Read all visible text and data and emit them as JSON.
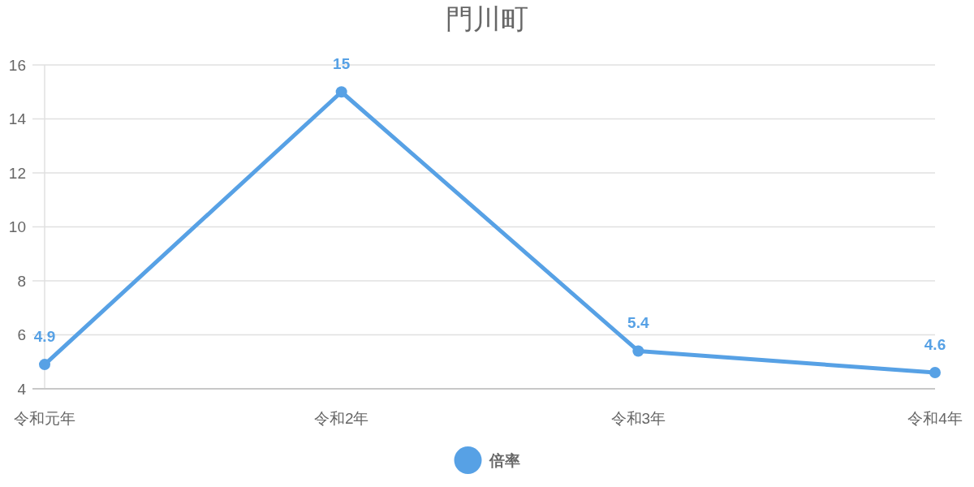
{
  "chart_data": {
    "type": "line",
    "title": "門川町",
    "categories": [
      "令和元年",
      "令和2年",
      "令和3年",
      "令和4年"
    ],
    "series": [
      {
        "name": "倍率",
        "color": "#57a1e5",
        "values": [
          4.9,
          15,
          5.4,
          4.6
        ]
      }
    ],
    "ylim": [
      4,
      16
    ],
    "yticks": [
      4,
      6,
      8,
      10,
      12,
      14,
      16
    ],
    "grid": "y",
    "legend": "bottom",
    "data_labels": true,
    "marker": "circle"
  }
}
